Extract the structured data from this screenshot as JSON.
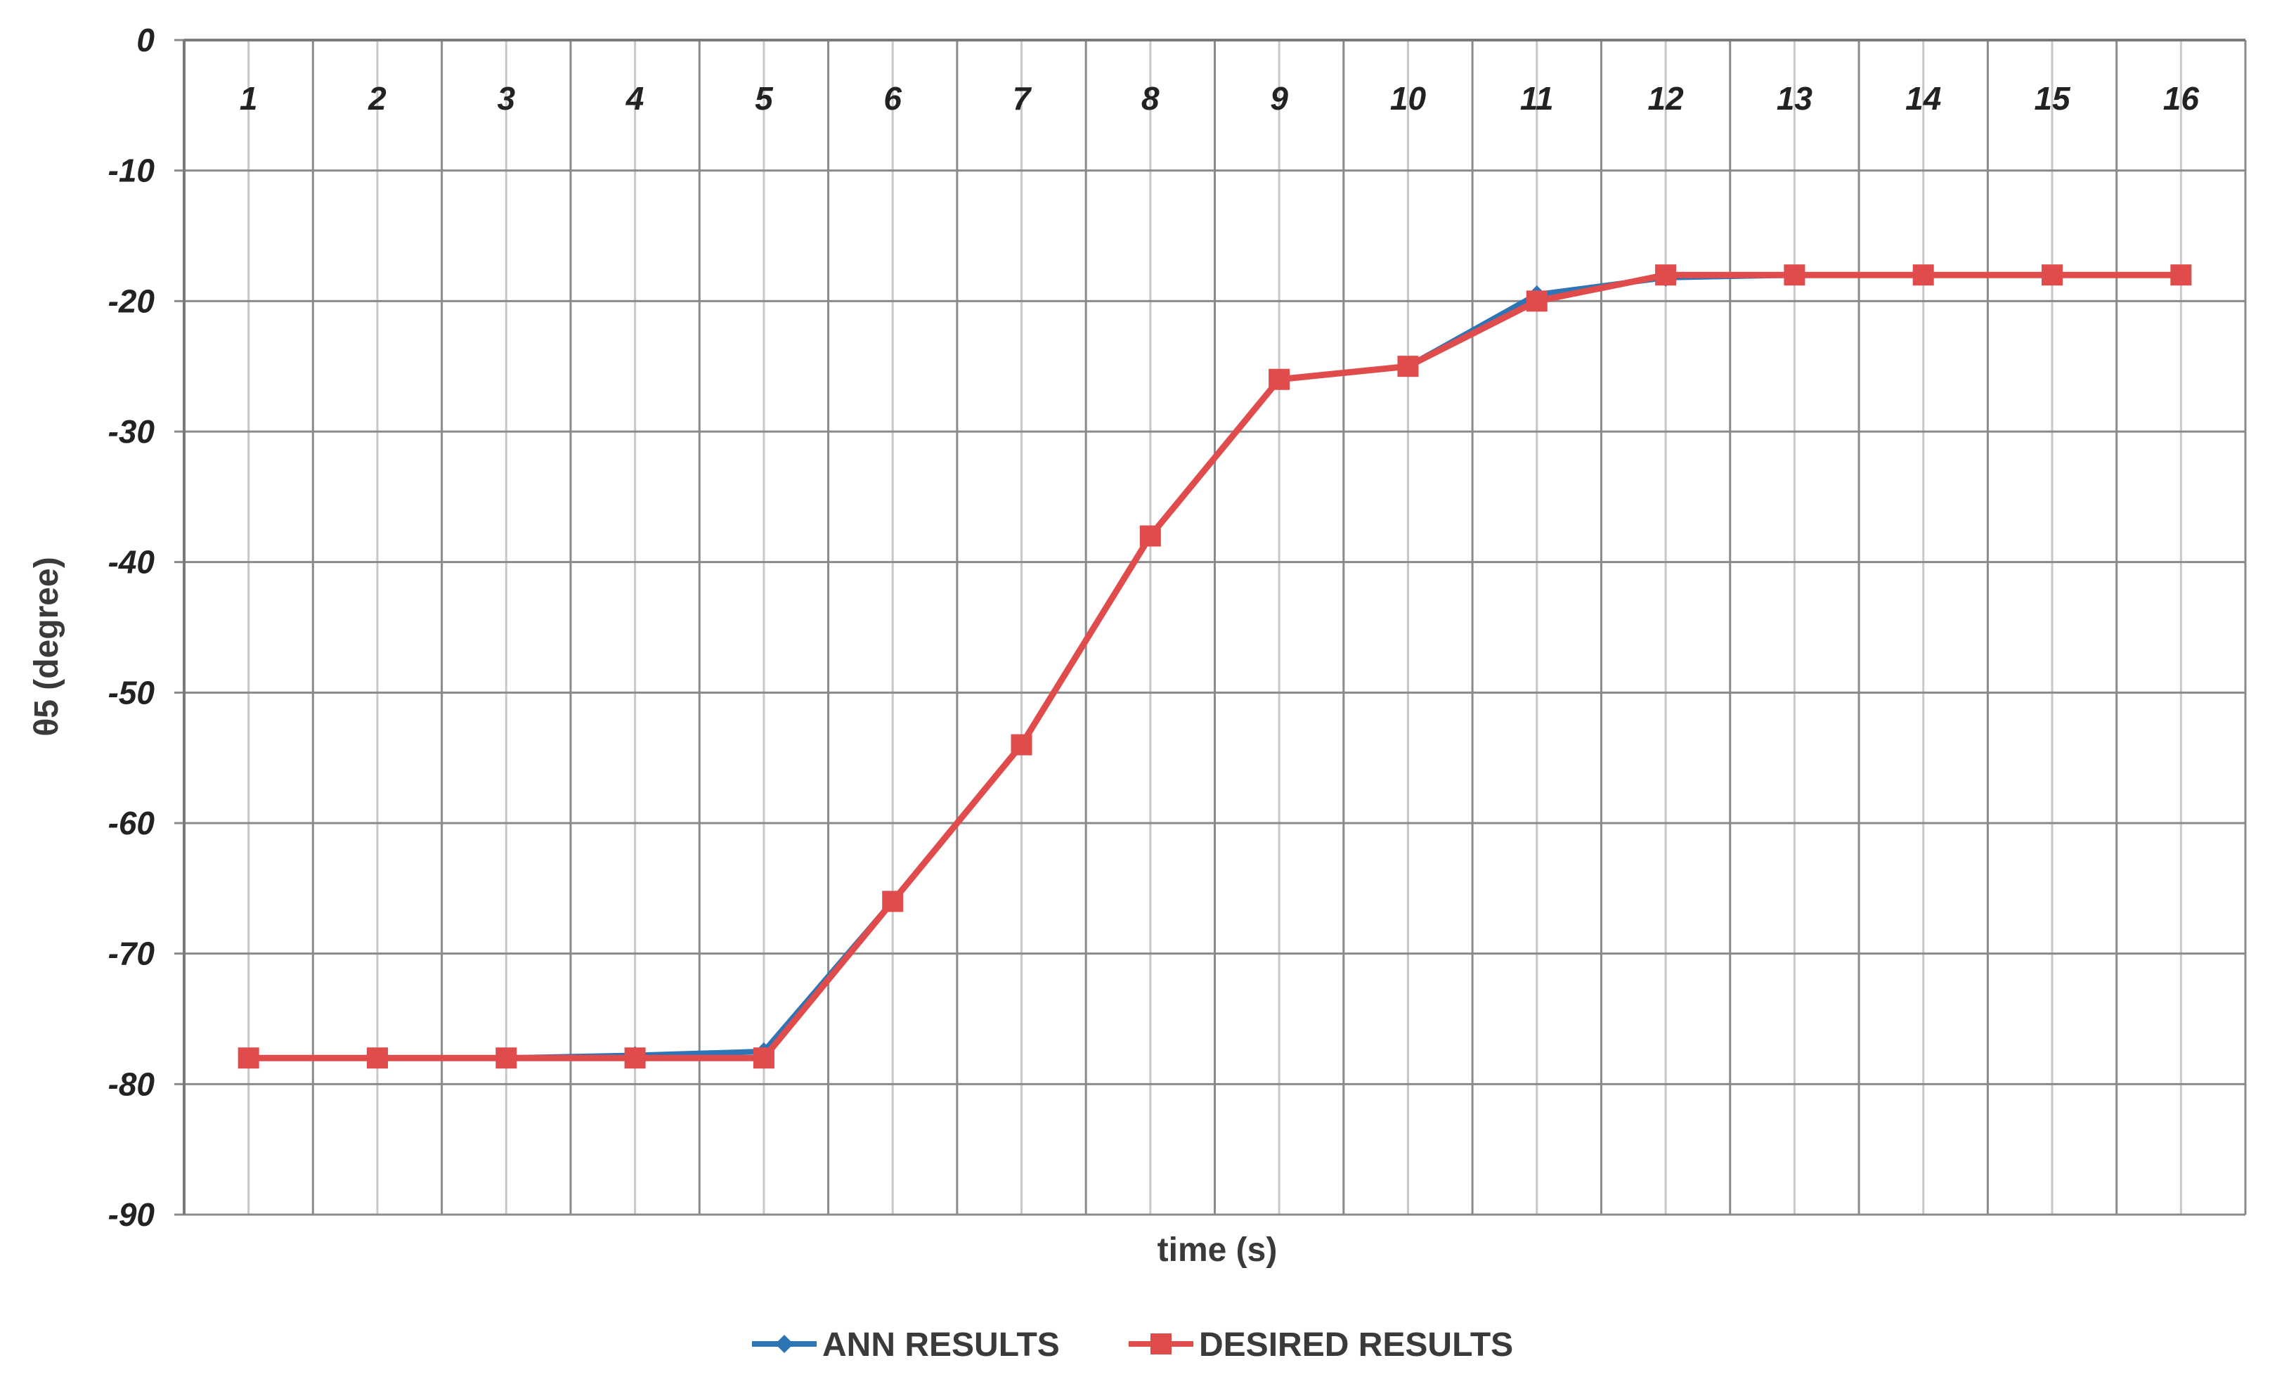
{
  "chart_data": {
    "type": "line",
    "title": "",
    "xlabel": "time (s)",
    "ylabel": "θ5 (degree)",
    "categories": [
      "1",
      "2",
      "3",
      "4",
      "5",
      "6",
      "7",
      "8",
      "9",
      "10",
      "11",
      "12",
      "13",
      "14",
      "15",
      "16"
    ],
    "ylim": [
      -90,
      0
    ],
    "yticks": [
      "0",
      "-10",
      "-20",
      "-30",
      "-40",
      "-50",
      "-60",
      "-70",
      "-80",
      "-90"
    ],
    "x_axis_position": "top",
    "grid": true,
    "legend_position": "bottom-center",
    "series": [
      {
        "name": "ANN RESULTS",
        "color": "#2E75B6",
        "marker": "diamond",
        "values": [
          -78,
          -78,
          -78,
          -77.8,
          -77.5,
          -66,
          -54,
          -38,
          -26,
          -25,
          -19.5,
          -18.2,
          -18,
          -18,
          -18,
          -18
        ]
      },
      {
        "name": "DESIRED RESULTS",
        "color": "#E04B4B",
        "marker": "square",
        "values": [
          -78,
          -78,
          -78,
          -78,
          -78,
          -66,
          -54,
          -38,
          -26,
          -25,
          -20,
          -18,
          -18,
          -18,
          -18,
          -18
        ]
      }
    ]
  }
}
